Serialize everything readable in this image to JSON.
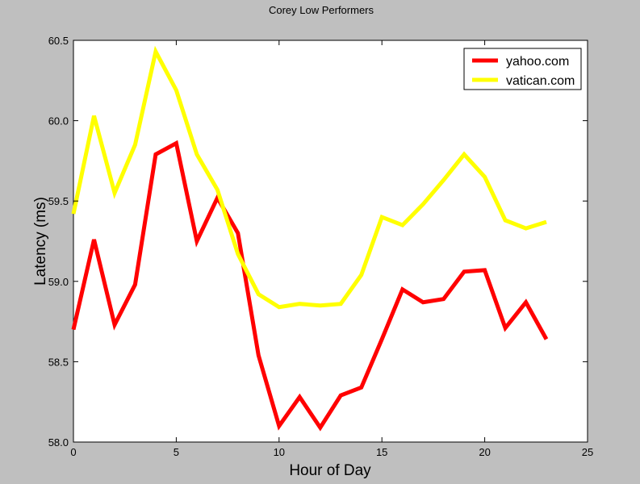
{
  "chart_data": {
    "type": "line",
    "title": "Corey Low Performers",
    "xlabel": "Hour of Day",
    "ylabel": "Latency (ms)",
    "xlim": [
      0,
      25
    ],
    "ylim": [
      58.0,
      60.5
    ],
    "xticks": [
      0,
      5,
      10,
      15,
      20,
      25
    ],
    "yticks": [
      58.0,
      58.5,
      59.0,
      59.5,
      60.0,
      60.5
    ],
    "xtick_labels": [
      "0",
      "5",
      "10",
      "15",
      "20",
      "25"
    ],
    "ytick_labels": [
      "58.0",
      "58.5",
      "59.0",
      "59.5",
      "60.0",
      "60.5"
    ],
    "grid": false,
    "legend_position": "top-right",
    "x": [
      0,
      1,
      2,
      3,
      4,
      5,
      6,
      7,
      8,
      9,
      10,
      11,
      12,
      13,
      14,
      15,
      16,
      17,
      18,
      19,
      20,
      21,
      22,
      23
    ],
    "series": [
      {
        "name": "yahoo.com",
        "color": "#ff0000",
        "values": [
          58.7,
          59.26,
          58.73,
          58.98,
          59.79,
          59.86,
          59.25,
          59.52,
          59.3,
          58.54,
          58.1,
          58.28,
          58.09,
          58.29,
          58.34,
          58.64,
          58.95,
          58.87,
          58.89,
          59.06,
          59.07,
          58.71,
          58.87,
          58.64
        ]
      },
      {
        "name": "vatican.com",
        "color": "#ffff00",
        "values": [
          59.42,
          60.03,
          59.55,
          59.85,
          60.43,
          60.19,
          59.79,
          59.57,
          59.17,
          58.92,
          58.84,
          58.86,
          58.85,
          58.86,
          59.04,
          59.4,
          59.35,
          59.48,
          59.63,
          59.79,
          59.65,
          59.38,
          59.33,
          59.37
        ]
      }
    ]
  }
}
